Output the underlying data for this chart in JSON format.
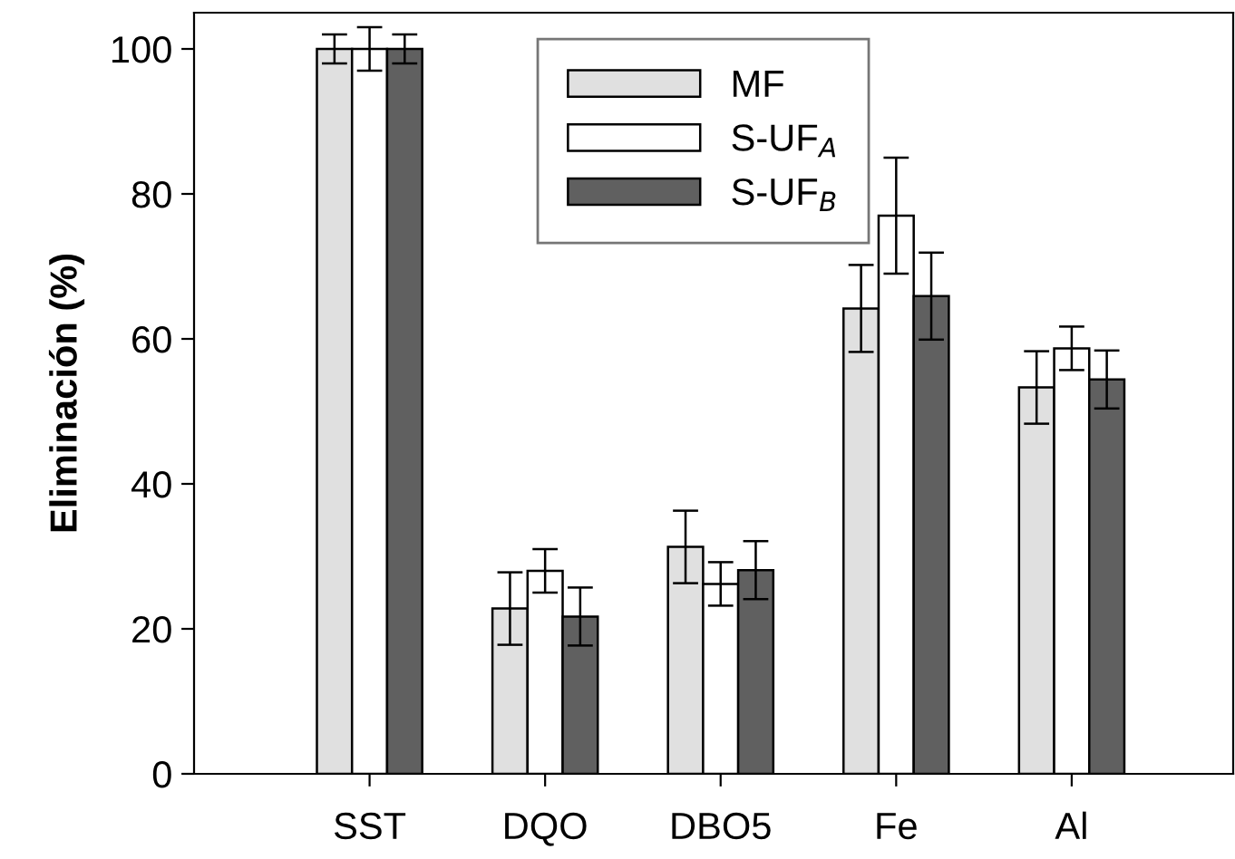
{
  "chart_data": {
    "type": "bar",
    "ylabel": "Eliminación (%)",
    "categories": [
      "SST",
      "DQO",
      "DBO5",
      "Fe",
      "Al"
    ],
    "series": [
      {
        "name": "MF",
        "color": "#e0e0e0",
        "values": [
          100,
          22.8,
          31.3,
          64.2,
          53.3
        ],
        "errors": [
          2,
          5,
          5,
          6,
          5
        ]
      },
      {
        "name": "S-UF$_{A}$",
        "color": "#ffffff",
        "values": [
          100,
          28,
          26.2,
          77,
          58.7
        ],
        "errors": [
          3,
          3,
          3,
          8,
          3
        ]
      },
      {
        "name": "S-UF$_{B}$",
        "color": "#606060",
        "values": [
          100,
          21.7,
          28.1,
          65.9,
          54.4
        ],
        "errors": [
          2,
          4,
          4,
          6,
          4
        ]
      }
    ],
    "ylim": [
      0,
      105
    ],
    "yticks": [
      0,
      20,
      40,
      60,
      80,
      100
    ],
    "grid": false,
    "legend": "top"
  }
}
